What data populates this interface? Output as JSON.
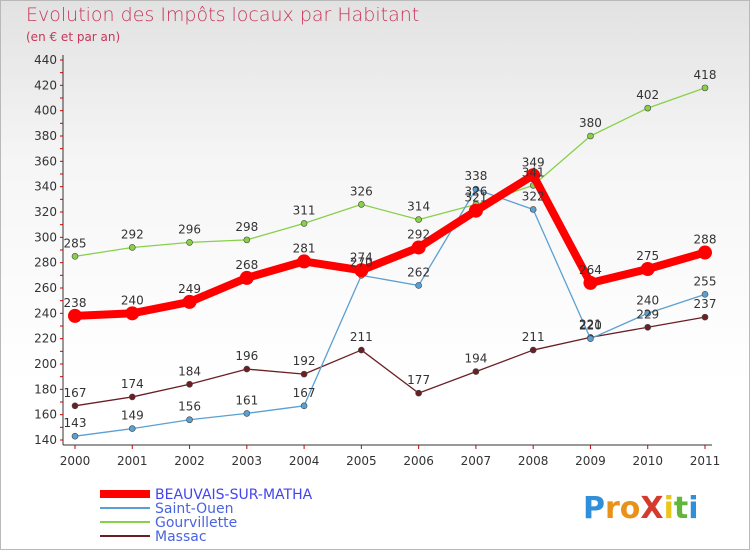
{
  "title": "Evolution des Impôts locaux par Habitant",
  "subtitle": "(en € et par an)",
  "logo": "ProXiti",
  "chart_data": {
    "type": "line",
    "x": [
      "2000",
      "2001",
      "2002",
      "2003",
      "2004",
      "2005",
      "2006",
      "2007",
      "2008",
      "2009",
      "2010",
      "2011"
    ],
    "ylim": [
      140,
      440
    ],
    "yticks": [
      140,
      160,
      180,
      200,
      220,
      240,
      260,
      280,
      300,
      320,
      340,
      360,
      380,
      400,
      420,
      440
    ],
    "grid": false,
    "legend_position": "bottom-left",
    "series": [
      {
        "name": "BEAUVAIS-SUR-MATHA",
        "color": "#ff0000",
        "values": [
          238,
          240,
          249,
          268,
          281,
          274,
          292,
          321,
          349,
          264,
          275,
          288
        ],
        "labels": [
          238,
          240,
          249,
          268,
          281,
          274,
          292,
          321,
          349,
          264,
          275,
          288
        ]
      },
      {
        "name": "Saint-Ouen",
        "color": "#5aa0d2",
        "values": [
          143,
          149,
          156,
          161,
          167,
          270,
          262,
          338,
          322,
          220,
          240,
          255
        ],
        "labels": [
          143,
          149,
          156,
          161,
          167,
          270,
          262,
          338,
          322,
          220,
          240,
          255
        ]
      },
      {
        "name": "Gourvillette",
        "color": "#88d04a",
        "values": [
          285,
          292,
          296,
          298,
          311,
          326,
          314,
          326,
          341,
          380,
          402,
          418
        ],
        "labels": [
          285,
          292,
          296,
          298,
          311,
          326,
          314,
          326,
          341,
          380,
          402,
          418
        ]
      },
      {
        "name": "Massac",
        "color": "#6b1f25",
        "values": [
          167,
          174,
          184,
          196,
          192,
          211,
          177,
          194,
          211,
          221,
          229,
          237
        ],
        "labels": [
          167,
          174,
          184,
          196,
          192,
          211,
          177,
          194,
          211,
          221,
          229,
          237
        ]
      }
    ]
  }
}
